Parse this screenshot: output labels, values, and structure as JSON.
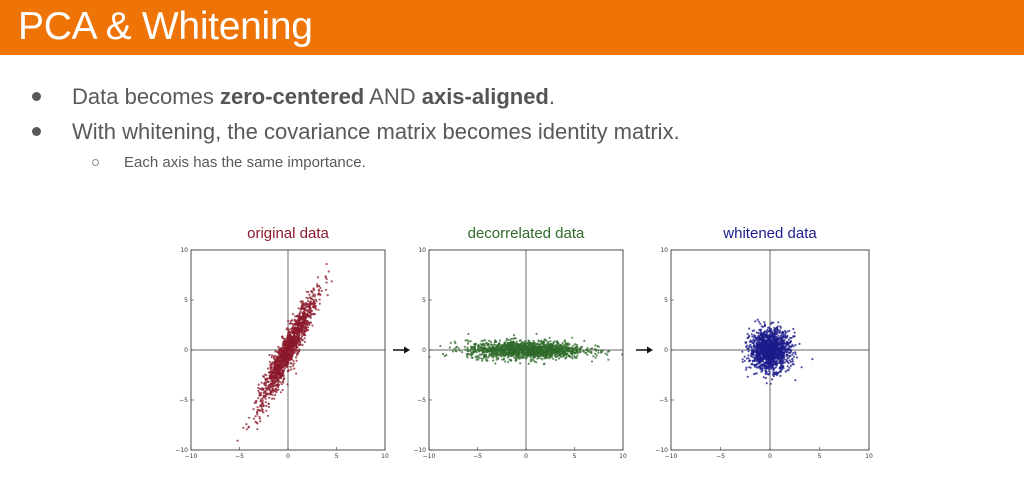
{
  "slide": {
    "title": "PCA & Whitening",
    "bullets": [
      {
        "segments": [
          {
            "text": "Data becomes ",
            "bold": false
          },
          {
            "text": "zero-centered",
            "bold": true
          },
          {
            "text": " AND ",
            "bold": false
          },
          {
            "text": "axis-aligned",
            "bold": true
          },
          {
            "text": ".",
            "bold": false
          }
        ]
      },
      {
        "segments": [
          {
            "text": "With whitening, the covariance matrix becomes identity matrix.",
            "bold": false
          }
        ]
      }
    ],
    "sub_bullets": [
      "Each axis has the same importance."
    ]
  },
  "colors": {
    "title_bar": "#ef7407",
    "original": "#8b1a2b",
    "decorrelated": "#2f6b2a",
    "whitened": "#1c1c8c"
  },
  "chart_data": [
    {
      "type": "scatter",
      "title": "original data",
      "color": "#8b1a2b",
      "xlim": [
        -10,
        10
      ],
      "ylim": [
        -10,
        10
      ],
      "xticks": [
        -10,
        -5,
        0,
        5,
        10
      ],
      "yticks": [
        10,
        5,
        0,
        -5,
        -10
      ],
      "distribution": {
        "mean": [
          0,
          0
        ],
        "std_major": 3.0,
        "std_minor": 0.45,
        "angle_deg": 63,
        "n_points": 1500
      }
    },
    {
      "type": "scatter",
      "title": "decorrelated data",
      "color": "#2f6b2a",
      "xlim": [
        -10,
        10
      ],
      "ylim": [
        -10,
        10
      ],
      "xticks": [
        -10,
        -5,
        0,
        5,
        10
      ],
      "yticks": [
        10,
        5,
        0,
        -5,
        -10
      ],
      "distribution": {
        "mean": [
          0,
          0
        ],
        "std_major": 3.0,
        "std_minor": 0.45,
        "angle_deg": 0,
        "n_points": 1500
      }
    },
    {
      "type": "scatter",
      "title": "whitened data",
      "color": "#1c1c8c",
      "xlim": [
        -10,
        10
      ],
      "ylim": [
        -10,
        10
      ],
      "xticks": [
        -10,
        -5,
        0,
        5,
        10
      ],
      "yticks": [
        10,
        5,
        0,
        -5,
        -10
      ],
      "distribution": {
        "mean": [
          0,
          0
        ],
        "std_major": 1.0,
        "std_minor": 1.0,
        "angle_deg": 0,
        "n_points": 1500
      }
    }
  ]
}
